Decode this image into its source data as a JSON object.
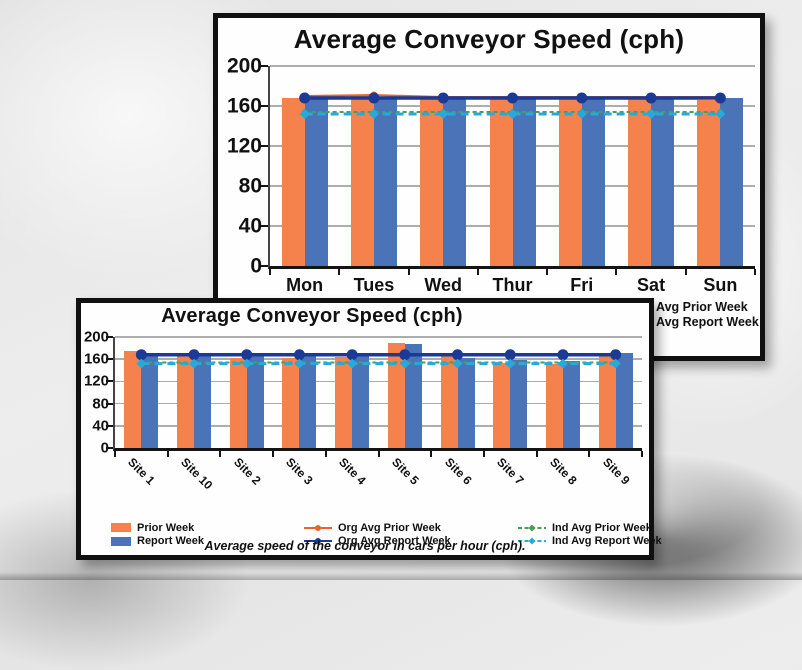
{
  "colors": {
    "prior_week": "#F5814D",
    "report_week": "#4B73B8",
    "org_avg_prior": "#E4672F",
    "org_avg_report": "#1A3A96",
    "ind_avg_prior": "#4C9F50",
    "ind_avg_report": "#27AAD9",
    "gridline": "#ADADAD",
    "axis": "#141414",
    "window_border": "#101010"
  },
  "chart_data": [
    {
      "id": "daily",
      "type": "bar",
      "title": "Average Conveyor Speed (cph)",
      "categories": [
        "Mon",
        "Tues",
        "Wed",
        "Thur",
        "Fri",
        "Sat",
        "Sun"
      ],
      "ylim": [
        0,
        200
      ],
      "yticks": [
        0,
        40,
        80,
        120,
        160,
        200
      ],
      "grid": true,
      "legend_position": "bottom-right, mostly hidden behind front window",
      "legend_visible_text": [
        "Avg Prior Week",
        "Avg Report Week"
      ],
      "series": [
        {
          "name": "Prior Week",
          "type": "bar",
          "color_key": "prior_week",
          "values": [
            168,
            171,
            167,
            167,
            167,
            167,
            166
          ]
        },
        {
          "name": "Report Week",
          "type": "bar",
          "color_key": "report_week",
          "values": [
            169,
            168,
            168,
            168,
            168,
            168,
            168
          ]
        },
        {
          "name": "Org Avg Prior Week",
          "type": "line",
          "line_style": "solid",
          "marker": "circle",
          "color_key": "org_avg_prior",
          "values": [
            170,
            171,
            169,
            169,
            169,
            169,
            169
          ]
        },
        {
          "name": "Org Avg Report Week",
          "type": "line",
          "line_style": "solid",
          "marker": "circle",
          "color_key": "org_avg_report",
          "values": 168
        },
        {
          "name": "Ind Avg Prior Week",
          "type": "line",
          "line_style": "dashed",
          "marker": "diamond",
          "color_key": "ind_avg_prior",
          "values": 154
        },
        {
          "name": "Ind Avg Report Week",
          "type": "line",
          "line_style": "dashed",
          "marker": "diamond",
          "color_key": "ind_avg_report",
          "values": 152
        }
      ]
    },
    {
      "id": "site",
      "type": "bar",
      "title": "Average Conveyor Speed (cph)",
      "categories": [
        "Site 1",
        "Site 10",
        "Site 2",
        "Site 3",
        "Site 4",
        "Site 5",
        "Site 6",
        "Site 7",
        "Site 8",
        "Site 9"
      ],
      "ylim": [
        0,
        200
      ],
      "yticks": [
        0,
        40,
        80,
        120,
        160,
        200
      ],
      "grid": true,
      "legend_position": "bottom",
      "caption": "Average speed of the conveyor in cars per hour (cph).",
      "series": [
        {
          "name": "Prior Week",
          "type": "bar",
          "color_key": "prior_week",
          "values": [
            174,
            165,
            163,
            162,
            164,
            190,
            165,
            154,
            152,
            168
          ]
        },
        {
          "name": "Report Week",
          "type": "bar",
          "color_key": "report_week",
          "values": [
            172,
            170,
            170,
            170,
            168,
            188,
            163,
            158,
            157,
            172
          ]
        },
        {
          "name": "Org Avg Prior Week",
          "type": "line",
          "line_style": "solid",
          "marker": "circle",
          "color_key": "org_avg_prior",
          "values": 169
        },
        {
          "name": "Org Avg Report Week",
          "type": "line",
          "line_style": "solid",
          "marker": "circle",
          "color_key": "org_avg_report",
          "values": 168
        },
        {
          "name": "Ind Avg Prior Week",
          "type": "line",
          "line_style": "dashed",
          "marker": "diamond",
          "color_key": "ind_avg_prior",
          "values": 154
        },
        {
          "name": "Ind Avg Report Week",
          "type": "line",
          "line_style": "dashed",
          "marker": "diamond",
          "color_key": "ind_avg_report",
          "values": 152
        }
      ],
      "legend": [
        {
          "label": "Prior Week",
          "kind": "bar",
          "color_key": "prior_week"
        },
        {
          "label": "Report Week",
          "kind": "bar",
          "color_key": "report_week"
        },
        {
          "label": "Org Avg Prior Week",
          "kind": "line",
          "color_key": "org_avg_prior"
        },
        {
          "label": "Org Avg Report Week",
          "kind": "line",
          "color_key": "org_avg_report"
        },
        {
          "label": "Ind Avg Prior Week",
          "kind": "dash",
          "color_key": "ind_avg_prior"
        },
        {
          "label": "Ind Avg Report Week",
          "kind": "dash",
          "color_key": "ind_avg_report"
        }
      ]
    }
  ]
}
